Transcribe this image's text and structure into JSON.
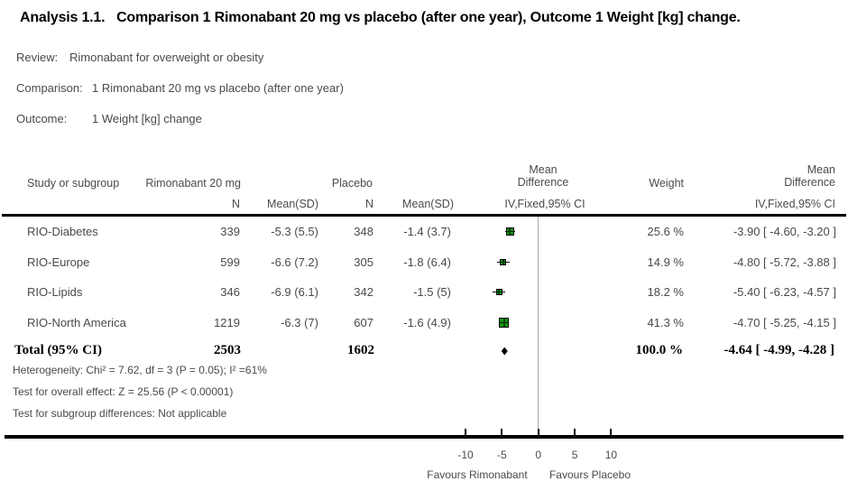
{
  "title": "Analysis 1.1.   Comparison 1 Rimonabant 20 mg vs placebo (after one year), Outcome 1 Weight [kg] change.",
  "meta": {
    "review_label": "Review:",
    "review_value": "Rimonabant for overweight or obesity",
    "comparison_label": "Comparison:",
    "comparison_value": "1 Rimonabant 20 mg vs placebo (after one year)",
    "outcome_label": "Outcome:",
    "outcome_value": "1 Weight [kg] change"
  },
  "table": {
    "headers": {
      "study": "Study or subgroup",
      "group1": "Rimonabant 20 mg",
      "group2": "Placebo",
      "n": "N",
      "mean_sd": "Mean(SD)",
      "md_line1": "Mean",
      "md_line2": "Difference",
      "ci_method": "IV,Fixed,95% CI",
      "weight": "Weight"
    },
    "rows": [
      {
        "study": "RIO-Diabetes",
        "n1": "339",
        "mean1": "-5.3 (5.5)",
        "n2": "348",
        "mean2": "-1.4 (3.7)",
        "weight": "25.6 %",
        "ci": "-3.90 [ -4.60, -3.20 ]"
      },
      {
        "study": "RIO-Europe",
        "n1": "599",
        "mean1": "-6.6 (7.2)",
        "n2": "305",
        "mean2": "-1.8 (6.4)",
        "weight": "14.9 %",
        "ci": "-4.80 [ -5.72, -3.88 ]"
      },
      {
        "study": "RIO-Lipids",
        "n1": "346",
        "mean1": "-6.9 (6.1)",
        "n2": "342",
        "mean2": "-1.5 (5)",
        "weight": "18.2 %",
        "ci": "-5.40 [ -6.23, -4.57 ]"
      },
      {
        "study": "RIO-North America",
        "n1": "1219",
        "mean1": "-6.3 (7)",
        "n2": "607",
        "mean2": "-1.6 (4.9)",
        "weight": "41.3 %",
        "ci": "-4.70 [ -5.25, -4.15 ]"
      }
    ],
    "total": {
      "label": "Total (95% CI)",
      "n1": "2503",
      "n2": "1602",
      "weight": "100.0 %",
      "ci": "-4.64 [ -4.99, -4.28 ]"
    }
  },
  "stats": {
    "heterogeneity": "Heterogeneity: Chi² = 7.62, df = 3 (P = 0.05); I² =61%",
    "overall_effect": "Test for overall effect: Z = 25.56 (P < 0.00001)",
    "subgroup": "Test for subgroup differences: Not applicable"
  },
  "axis": {
    "tick_labels": [
      "-10",
      "-5",
      "0",
      "5",
      "10"
    ],
    "favours_left": "Favours Rimonabant",
    "favours_right": "Favours Placebo"
  },
  "colors": {
    "marker_green": "#0f9b0f",
    "diamond_black": "#000000",
    "zero_line_gray": "#ababab"
  },
  "chart_data": {
    "type": "scatter",
    "subtype": "forest-plot",
    "effect_measure": "Mean Difference IV,Fixed,95% CI",
    "x_ticks": [
      -10,
      -5,
      0,
      5,
      10
    ],
    "x_range": [
      -12.5,
      12.5
    ],
    "zero_line": 0,
    "studies": [
      {
        "name": "RIO-Diabetes",
        "md": -3.9,
        "ci_low": -4.6,
        "ci_high": -3.2,
        "weight_pct": 25.6
      },
      {
        "name": "RIO-Europe",
        "md": -4.8,
        "ci_low": -5.72,
        "ci_high": -3.88,
        "weight_pct": 14.9
      },
      {
        "name": "RIO-Lipids",
        "md": -5.4,
        "ci_low": -6.23,
        "ci_high": -4.57,
        "weight_pct": 18.2
      },
      {
        "name": "RIO-North America",
        "md": -4.7,
        "ci_low": -5.25,
        "ci_high": -4.15,
        "weight_pct": 41.3
      }
    ],
    "total": {
      "name": "Total (95% CI)",
      "md": -4.64,
      "ci_low": -4.99,
      "ci_high": -4.28,
      "weight_pct": 100.0
    },
    "favours_left": "Favours Rimonabant",
    "favours_right": "Favours Placebo"
  }
}
